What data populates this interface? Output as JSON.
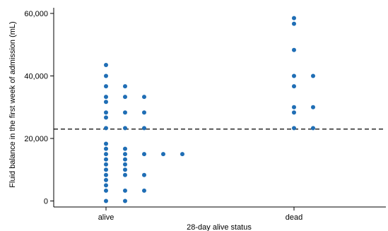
{
  "chart_data": {
    "type": "scatter",
    "title": "",
    "xlabel": "28-day alive status",
    "ylabel": "Fluid balance in the first week of admission (mL)",
    "categories": [
      "alive",
      "dead"
    ],
    "ylim": [
      -2500,
      62000
    ],
    "yticks": [
      {
        "value": 0,
        "label": "0"
      },
      {
        "value": 20000,
        "label": "20,000"
      },
      {
        "value": 40000,
        "label": "40,000"
      },
      {
        "value": 60000,
        "label": "60,000"
      }
    ],
    "reference_line": {
      "value": 23000,
      "style": "dashed"
    },
    "grid": false,
    "legend": "none",
    "marker_color": "#1f6eb5",
    "series": [
      {
        "category": "alive",
        "columns": [
          [
            43500,
            40000,
            36700,
            33300,
            31700,
            28300,
            26700,
            23300,
            18300,
            16700,
            15000,
            13300,
            11700,
            10000,
            8300,
            6700,
            5000,
            3300,
            0
          ],
          [
            36700,
            33300,
            28300,
            23300,
            16700,
            15000,
            13300,
            11700,
            10000,
            8300,
            3300,
            0
          ],
          [
            33300,
            28300,
            23300,
            15000,
            8300,
            3300
          ],
          [
            15000
          ],
          [
            15000
          ]
        ]
      },
      {
        "category": "dead",
        "columns": [
          [
            58500,
            56700,
            48300,
            40000,
            36700,
            30000,
            28300,
            23300
          ],
          [
            40000,
            30000,
            23300
          ]
        ]
      }
    ]
  }
}
